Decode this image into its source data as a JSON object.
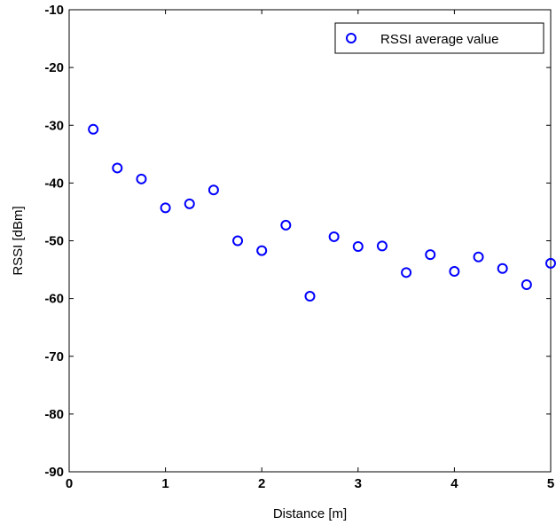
{
  "chart_data": {
    "type": "scatter",
    "title": "",
    "xlabel": "Distance [m]",
    "ylabel": "RSSI [dBm]",
    "xlim": [
      0,
      5
    ],
    "ylim": [
      -90,
      -10
    ],
    "xticks": [
      0,
      1,
      2,
      3,
      4,
      5
    ],
    "yticks": [
      -90,
      -80,
      -70,
      -60,
      -50,
      -40,
      -30,
      -20,
      -10
    ],
    "grid": false,
    "legend": "top-right",
    "marker_color": "#0000ff",
    "series": [
      {
        "name": "RSSI average value",
        "points": [
          {
            "x": 0.25,
            "y": -30.7
          },
          {
            "x": 0.5,
            "y": -37.4
          },
          {
            "x": 0.75,
            "y": -39.3
          },
          {
            "x": 1.0,
            "y": -44.3
          },
          {
            "x": 1.25,
            "y": -43.6
          },
          {
            "x": 1.5,
            "y": -41.2
          },
          {
            "x": 1.75,
            "y": -50.0
          },
          {
            "x": 2.0,
            "y": -51.7
          },
          {
            "x": 2.25,
            "y": -47.3
          },
          {
            "x": 2.5,
            "y": -59.6
          },
          {
            "x": 2.75,
            "y": -49.3
          },
          {
            "x": 3.0,
            "y": -51.0
          },
          {
            "x": 3.25,
            "y": -50.9
          },
          {
            "x": 3.5,
            "y": -55.5
          },
          {
            "x": 3.75,
            "y": -52.4
          },
          {
            "x": 4.0,
            "y": -55.3
          },
          {
            "x": 4.25,
            "y": -52.8
          },
          {
            "x": 4.5,
            "y": -54.8
          },
          {
            "x": 4.75,
            "y": -57.6
          },
          {
            "x": 5.0,
            "y": -53.9
          }
        ]
      }
    ]
  }
}
